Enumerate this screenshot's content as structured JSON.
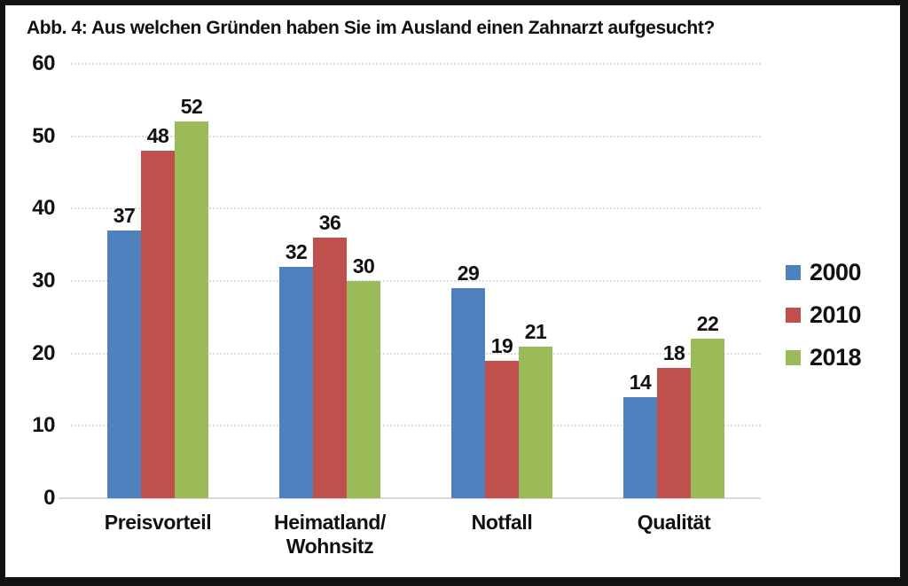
{
  "figure": {
    "title": "Abb. 4: Aus welchen Gründen haben Sie im Ausland einen Zahnarzt aufgesucht?"
  },
  "chart_data": {
    "type": "bar",
    "title": "Abb. 4: Aus welchen Gründen haben Sie im Ausland einen Zahnarzt aufgesucht?",
    "categories": [
      "Preisvorteil",
      "Heimatland/\nWohnsitz",
      "Notfall",
      "Qualität"
    ],
    "series": [
      {
        "name": "2000",
        "color": "#4E81BD",
        "values": [
          37,
          32,
          29,
          14
        ]
      },
      {
        "name": "2010",
        "color": "#C0504D",
        "values": [
          48,
          36,
          19,
          18
        ]
      },
      {
        "name": "2018",
        "color": "#9BBB59",
        "values": [
          52,
          30,
          21,
          22
        ]
      }
    ],
    "ylabel": "",
    "xlabel": "",
    "ylim": [
      0,
      60
    ],
    "yticks": [
      0,
      10,
      20,
      30,
      40,
      50,
      60
    ],
    "grid": true,
    "gridline_style": "dotted",
    "value_labels": true,
    "legend_position": "right",
    "colors": {
      "gridline": "#dcdcdc",
      "axis_line": "#d9d9d9",
      "text": "#111111",
      "background": "#ffffff",
      "frame_border": "#121212"
    }
  }
}
